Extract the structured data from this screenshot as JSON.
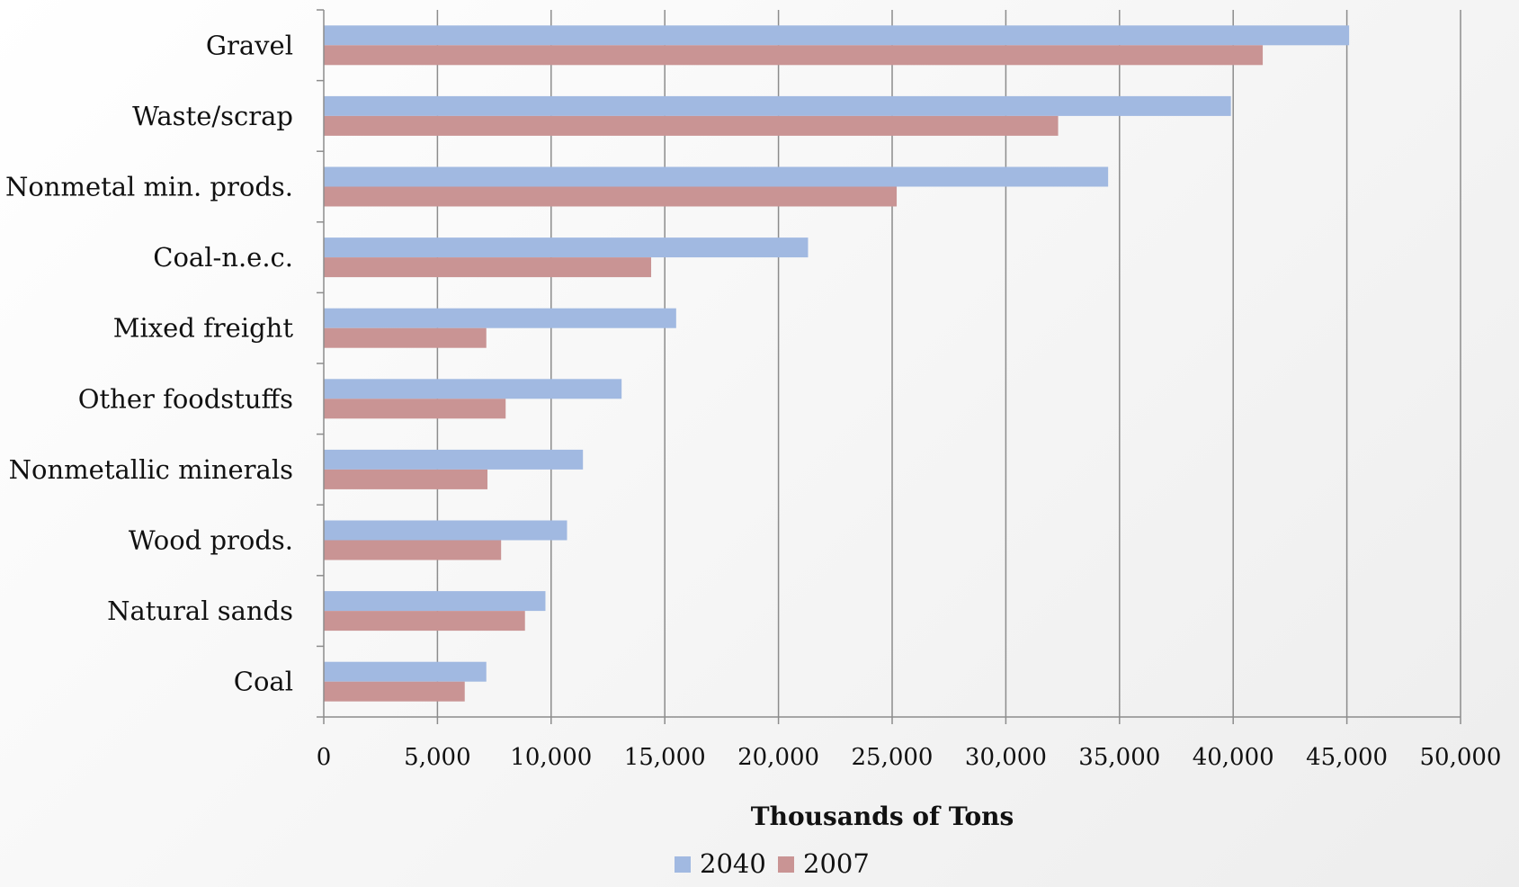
{
  "chart_data": {
    "type": "bar",
    "orientation": "horizontal",
    "categories": [
      "Gravel",
      "Waste/scrap",
      "Nonmetal min. prods.",
      "Coal-n.e.c.",
      "Mixed freight",
      "Other foodstuffs",
      "Nonmetallic minerals",
      "Wood prods.",
      "Natural sands",
      "Coal"
    ],
    "series": [
      {
        "name": "2040",
        "color": "#a1b9e1",
        "values": [
          45100,
          39900,
          34500,
          21300,
          15500,
          13100,
          11400,
          10700,
          9750,
          7150
        ]
      },
      {
        "name": "2007",
        "color": "#c99494",
        "values": [
          41300,
          32300,
          25200,
          14400,
          7150,
          8000,
          7200,
          7800,
          8850,
          6200
        ]
      }
    ],
    "xlabel": "Thousands of Tons",
    "xlim": [
      0,
      50000
    ],
    "x_ticks": [
      0,
      5000,
      10000,
      15000,
      20000,
      25000,
      30000,
      35000,
      40000,
      45000,
      50000
    ],
    "x_tick_labels": [
      "0",
      "5,000",
      "10,000",
      "15,000",
      "20,000",
      "25,000",
      "30,000",
      "35,000",
      "40,000",
      "45,000",
      "50,000"
    ],
    "grid": true,
    "legend_position": "bottom"
  }
}
